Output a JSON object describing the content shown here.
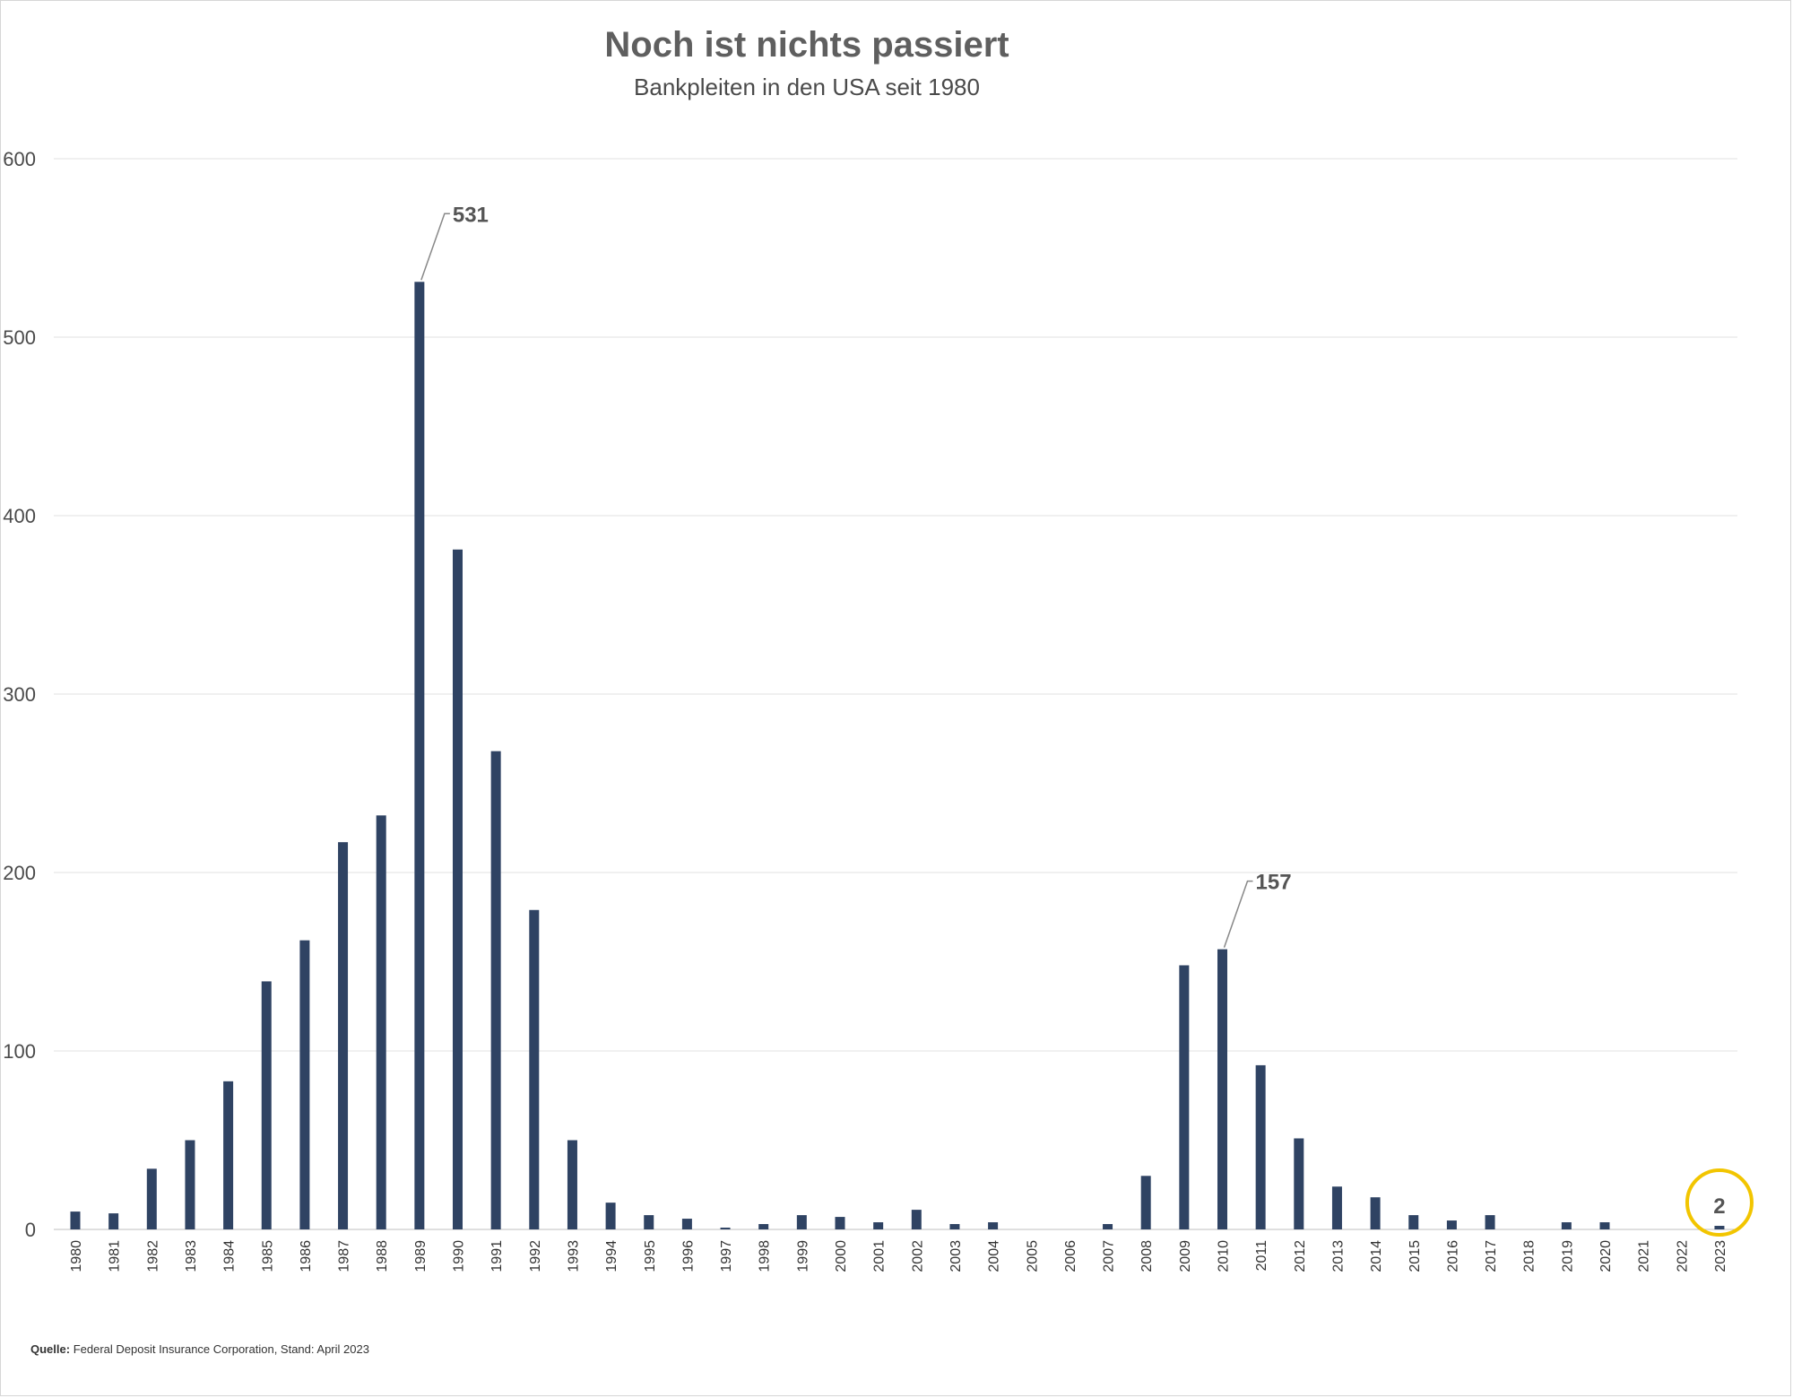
{
  "title": "Noch ist nichts passiert",
  "subtitle": "Bankpleiten in den USA seit 1980",
  "source": {
    "label": "Quelle:",
    "text": " Federal Deposit Insurance Corporation, Stand: April 2023"
  },
  "colors": {
    "bar": "#2f4363",
    "grid": "#e2e2e2",
    "highlight_circle": "#f2c500",
    "annotation_line": "#888888"
  },
  "chart_data": {
    "type": "bar",
    "title": "Noch ist nichts passiert",
    "subtitle": "Bankpleiten in den USA seit 1980",
    "xlabel": "",
    "ylabel": "",
    "ylim": [
      0,
      600
    ],
    "yticks": [
      0,
      100,
      200,
      300,
      400,
      500,
      600
    ],
    "grid": true,
    "legend": "none",
    "categories": [
      "1980",
      "1981",
      "1982",
      "1983",
      "1984",
      "1985",
      "1986",
      "1987",
      "1988",
      "1989",
      "1990",
      "1991",
      "1992",
      "1993",
      "1994",
      "1995",
      "1996",
      "1997",
      "1998",
      "1999",
      "2000",
      "2001",
      "2002",
      "2003",
      "2004",
      "2005",
      "2006",
      "2007",
      "2008",
      "2009",
      "2010",
      "2011",
      "2012",
      "2013",
      "2014",
      "2015",
      "2016",
      "2017",
      "2018",
      "2019",
      "2020",
      "2021",
      "2022",
      "2023"
    ],
    "values": [
      10,
      9,
      34,
      50,
      83,
      139,
      162,
      217,
      232,
      531,
      381,
      268,
      179,
      50,
      15,
      8,
      6,
      1,
      3,
      8,
      7,
      4,
      11,
      3,
      4,
      0,
      0,
      3,
      30,
      148,
      157,
      92,
      51,
      24,
      18,
      8,
      5,
      8,
      0,
      4,
      4,
      0,
      0,
      2
    ],
    "annotations": [
      {
        "category": "1989",
        "text": "531"
      },
      {
        "category": "2010",
        "text": "157"
      },
      {
        "category": "2023",
        "text": "2",
        "highlight": "circle"
      }
    ]
  }
}
